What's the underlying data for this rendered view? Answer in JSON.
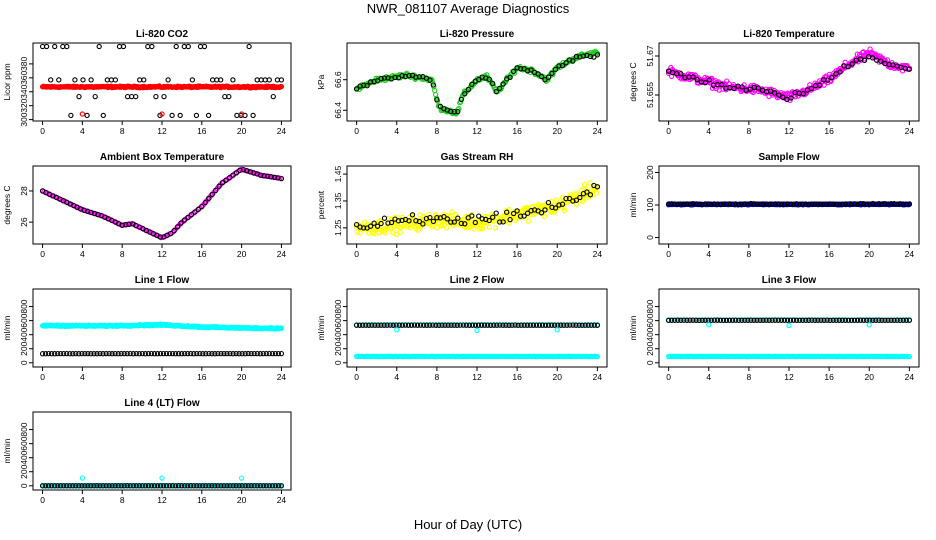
{
  "page": {
    "title": "NWR_081107  Average Diagnostics",
    "xlabel": "Hour of Day (UTC)"
  },
  "colors": {
    "black": "#000000",
    "red": "#ff0000",
    "green": "#22cc22",
    "magenta": "#ff00ff",
    "yellow": "#ffff00",
    "cyan": "#00ffff",
    "blue": "#0000cc"
  },
  "chart_data": [
    {
      "type": "scatter",
      "title": "Li-820 CO2",
      "ylabel": "Licor ppm",
      "xlim": [
        0,
        24
      ],
      "ylim": [
        298,
        410
      ],
      "xticks": [
        0,
        4,
        8,
        12,
        16,
        20,
        24
      ],
      "yticks": [
        300,
        320,
        340,
        360,
        380
      ],
      "series": [
        {
          "name": "red",
          "color": "red",
          "marker": "circle",
          "gen": "flat",
          "value": 347,
          "noise": 1.5,
          "n": 300
        },
        {
          "name": "black_upper",
          "color": "black",
          "marker": "circle",
          "gen": "levels",
          "levels": [
            306,
            333,
            357,
            405
          ],
          "n": 60
        },
        {
          "name": "red_low",
          "color": "red",
          "marker": "circle",
          "gen": "points",
          "x": [
            4,
            12,
            20
          ],
          "y": [
            308,
            308,
            308
          ]
        }
      ]
    },
    {
      "type": "scatter",
      "title": "Li-820 Pressure",
      "ylabel": "kPa",
      "xlim": [
        0,
        24
      ],
      "ylim": [
        66.33,
        66.84
      ],
      "xticks": [
        0,
        4,
        8,
        12,
        16,
        20,
        24
      ],
      "yticks": [
        66.4,
        66.6
      ],
      "series": [
        {
          "name": "green",
          "color": "green",
          "marker": "circle",
          "gen": "curve",
          "knots": [
            [
              0,
              66.54
            ],
            [
              2,
              66.6
            ],
            [
              5,
              66.63
            ],
            [
              7.5,
              66.6
            ],
            [
              8.2,
              66.42
            ],
            [
              9,
              66.4
            ],
            [
              10,
              66.38
            ],
            [
              10.6,
              66.5
            ],
            [
              12,
              66.6
            ],
            [
              13,
              66.62
            ],
            [
              14,
              66.52
            ],
            [
              16,
              66.68
            ],
            [
              17.5,
              66.66
            ],
            [
              19,
              66.6
            ],
            [
              20,
              66.68
            ],
            [
              22,
              66.75
            ],
            [
              24,
              66.78
            ]
          ],
          "noise": 0.02,
          "n": 260
        },
        {
          "name": "black",
          "color": "black",
          "marker": "circle",
          "gen": "curve",
          "knots": [
            [
              0,
              66.54
            ],
            [
              2,
              66.6
            ],
            [
              5,
              66.63
            ],
            [
              7.5,
              66.6
            ],
            [
              8.2,
              66.42
            ],
            [
              9,
              66.4
            ],
            [
              10,
              66.38
            ],
            [
              10.6,
              66.5
            ],
            [
              12,
              66.6
            ],
            [
              13,
              66.62
            ],
            [
              14,
              66.52
            ],
            [
              16,
              66.68
            ],
            [
              17.5,
              66.66
            ],
            [
              19,
              66.6
            ],
            [
              20,
              66.68
            ],
            [
              22,
              66.75
            ],
            [
              24,
              66.76
            ]
          ],
          "noise": 0.015,
          "n": 70
        }
      ]
    },
    {
      "type": "scatter",
      "title": "Li-820 Temperature",
      "ylabel": "degrees C",
      "xlim": [
        0,
        24
      ],
      "ylim": [
        51.645,
        51.675
      ],
      "xticks": [
        0,
        4,
        8,
        12,
        16,
        20,
        24
      ],
      "yticks": [
        51.655,
        51.67
      ],
      "series": [
        {
          "name": "magenta",
          "color": "magenta",
          "marker": "circle",
          "gen": "curve",
          "knots": [
            [
              0,
              51.664
            ],
            [
              3,
              51.661
            ],
            [
              6,
              51.658
            ],
            [
              9,
              51.657
            ],
            [
              12,
              51.654
            ],
            [
              14,
              51.657
            ],
            [
              16,
              51.661
            ],
            [
              18,
              51.667
            ],
            [
              20,
              51.671
            ],
            [
              22,
              51.667
            ],
            [
              24,
              51.665
            ]
          ],
          "noise": 0.0025,
          "n": 320
        },
        {
          "name": "black",
          "color": "black",
          "marker": "circle",
          "gen": "curve",
          "knots": [
            [
              0,
              51.664
            ],
            [
              3,
              51.661
            ],
            [
              6,
              51.658
            ],
            [
              9,
              51.657
            ],
            [
              12,
              51.654
            ],
            [
              14,
              51.657
            ],
            [
              16,
              51.661
            ],
            [
              18,
              51.667
            ],
            [
              20,
              51.67
            ],
            [
              22,
              51.667
            ],
            [
              24,
              51.665
            ]
          ],
          "noise": 0.0015,
          "n": 60
        }
      ]
    },
    {
      "type": "scatter",
      "title": "Ambient Box Temperature",
      "ylabel": "degrees C",
      "xlim": [
        0,
        24
      ],
      "ylim": [
        24.6,
        29.6
      ],
      "xticks": [
        0,
        4,
        8,
        12,
        16,
        20,
        24
      ],
      "yticks": [
        26,
        28
      ],
      "series": [
        {
          "name": "magenta",
          "color": "magenta",
          "marker": "circle",
          "gen": "curve",
          "knots": [
            [
              0,
              28
            ],
            [
              2,
              27.4
            ],
            [
              4,
              26.8
            ],
            [
              6,
              26.4
            ],
            [
              8,
              25.8
            ],
            [
              9,
              25.9
            ],
            [
              10,
              25.6
            ],
            [
              12,
              25.0
            ],
            [
              13,
              25.3
            ],
            [
              14,
              26.0
            ],
            [
              16,
              27.0
            ],
            [
              18,
              28.5
            ],
            [
              20,
              29.4
            ],
            [
              22,
              29.0
            ],
            [
              24,
              28.8
            ]
          ],
          "noise": 0.02,
          "n": 150
        },
        {
          "name": "black",
          "color": "black",
          "marker": "circle",
          "gen": "curve",
          "knots": [
            [
              0,
              28
            ],
            [
              2,
              27.4
            ],
            [
              4,
              26.8
            ],
            [
              6,
              26.4
            ],
            [
              8,
              25.8
            ],
            [
              9,
              25.9
            ],
            [
              10,
              25.6
            ],
            [
              12,
              25.0
            ],
            [
              13,
              25.3
            ],
            [
              14,
              26.0
            ],
            [
              16,
              27.0
            ],
            [
              18,
              28.5
            ],
            [
              20,
              29.4
            ],
            [
              22,
              29.0
            ],
            [
              24,
              28.8
            ]
          ],
          "noise": 0.01,
          "n": 70
        }
      ]
    },
    {
      "type": "scatter",
      "title": "Gas Stream RH",
      "ylabel": "percent",
      "xlim": [
        0,
        24
      ],
      "ylim": [
        1.19,
        1.48
      ],
      "xticks": [
        0,
        4,
        8,
        12,
        16,
        20,
        24
      ],
      "yticks": [
        1.25,
        1.35,
        1.45
      ],
      "series": [
        {
          "name": "yellow",
          "color": "yellow",
          "marker": "circle",
          "gen": "curve",
          "knots": [
            [
              0,
              1.25
            ],
            [
              4,
              1.26
            ],
            [
              8,
              1.28
            ],
            [
              12,
              1.27
            ],
            [
              16,
              1.3
            ],
            [
              20,
              1.33
            ],
            [
              24,
              1.4
            ]
          ],
          "noise": 0.04,
          "n": 360
        },
        {
          "name": "black",
          "color": "black",
          "marker": "circle",
          "gen": "curve",
          "knots": [
            [
              0,
              1.25
            ],
            [
              4,
              1.27
            ],
            [
              8,
              1.28
            ],
            [
              12,
              1.28
            ],
            [
              16,
              1.3
            ],
            [
              20,
              1.33
            ],
            [
              24,
              1.4
            ]
          ],
          "noise": 0.035,
          "n": 70
        }
      ]
    },
    {
      "type": "scatter",
      "title": "Sample Flow",
      "ylabel": "ml/min",
      "xlim": [
        0,
        24
      ],
      "ylim": [
        -20,
        220
      ],
      "xticks": [
        0,
        4,
        8,
        12,
        16,
        20,
        24
      ],
      "yticks": [
        0,
        100,
        200
      ],
      "series": [
        {
          "name": "blue",
          "color": "blue",
          "marker": "circle",
          "gen": "flat",
          "value": 102,
          "noise": 2,
          "n": 300
        },
        {
          "name": "black",
          "color": "black",
          "marker": "circle",
          "gen": "flat",
          "value": 103,
          "noise": 2,
          "n": 80
        }
      ]
    },
    {
      "type": "scatter",
      "title": "Line 1 Flow",
      "ylabel": "ml/min",
      "xlim": [
        0,
        24
      ],
      "ylim": [
        -60,
        1050
      ],
      "xticks": [
        0,
        4,
        8,
        12,
        16,
        20,
        24
      ],
      "yticks": [
        0,
        200,
        400,
        600,
        800
      ],
      "series": [
        {
          "name": "cyan",
          "color": "cyan",
          "marker": "circle",
          "gen": "curve",
          "knots": [
            [
              0,
              530
            ],
            [
              6,
              525
            ],
            [
              12,
              540
            ],
            [
              16,
              510
            ],
            [
              20,
              495
            ],
            [
              24,
              490
            ]
          ],
          "noise": 14,
          "n": 350
        },
        {
          "name": "black",
          "color": "black",
          "marker": "circle",
          "gen": "flat",
          "value": 130,
          "noise": 2,
          "n": 80
        }
      ]
    },
    {
      "type": "scatter",
      "title": "Line 2 Flow",
      "ylabel": "ml/min",
      "xlim": [
        0,
        24
      ],
      "ylim": [
        -60,
        1050
      ],
      "xticks": [
        0,
        4,
        8,
        12,
        16,
        20,
        24
      ],
      "yticks": [
        0,
        200,
        400,
        600,
        800
      ],
      "series": [
        {
          "name": "cyan_high",
          "color": "cyan",
          "marker": "circle",
          "gen": "flat",
          "value": 540,
          "noise": 3,
          "n": 80
        },
        {
          "name": "cyan_low",
          "color": "cyan",
          "marker": "circle",
          "gen": "flat",
          "value": 90,
          "noise": 3,
          "n": 200
        },
        {
          "name": "black",
          "color": "black",
          "marker": "circle",
          "gen": "flat",
          "value": 535,
          "noise": 2,
          "n": 80
        },
        {
          "name": "cyan_dips",
          "color": "cyan",
          "marker": "circle",
          "gen": "points",
          "x": [
            4,
            12,
            20
          ],
          "y": [
            470,
            460,
            470
          ]
        }
      ]
    },
    {
      "type": "scatter",
      "title": "Line 3 Flow",
      "ylabel": "ml/min",
      "xlim": [
        0,
        24
      ],
      "ylim": [
        -60,
        1050
      ],
      "xticks": [
        0,
        4,
        8,
        12,
        16,
        20,
        24
      ],
      "yticks": [
        0,
        200,
        400,
        600,
        800
      ],
      "series": [
        {
          "name": "cyan_low",
          "color": "cyan",
          "marker": "circle",
          "gen": "flat",
          "value": 90,
          "noise": 3,
          "n": 200
        },
        {
          "name": "cyan_high",
          "color": "cyan",
          "marker": "circle",
          "gen": "flat",
          "value": 610,
          "noise": 4,
          "n": 80
        },
        {
          "name": "black",
          "color": "black",
          "marker": "circle",
          "gen": "flat",
          "value": 605,
          "noise": 2,
          "n": 80
        },
        {
          "name": "cyan_dips",
          "color": "cyan",
          "marker": "circle",
          "gen": "points",
          "x": [
            4,
            12,
            20
          ],
          "y": [
            540,
            530,
            540
          ]
        }
      ]
    },
    {
      "type": "scatter",
      "title": "Line 4 (LT) Flow",
      "ylabel": "ml/min",
      "xlim": [
        0,
        24
      ],
      "ylim": [
        -60,
        1050
      ],
      "xticks": [
        0,
        4,
        8,
        12,
        16,
        20,
        24
      ],
      "yticks": [
        0,
        200,
        400,
        600,
        800
      ],
      "series": [
        {
          "name": "cyan",
          "color": "cyan",
          "marker": "circle",
          "gen": "flat",
          "value": 0,
          "noise": 2,
          "n": 200
        },
        {
          "name": "black",
          "color": "black",
          "marker": "circle",
          "gen": "flat",
          "value": 0,
          "noise": 1,
          "n": 80
        },
        {
          "name": "cyan_spikes",
          "color": "cyan",
          "marker": "circle",
          "gen": "points",
          "x": [
            4,
            12,
            20
          ],
          "y": [
            110,
            110,
            110
          ]
        }
      ]
    }
  ]
}
